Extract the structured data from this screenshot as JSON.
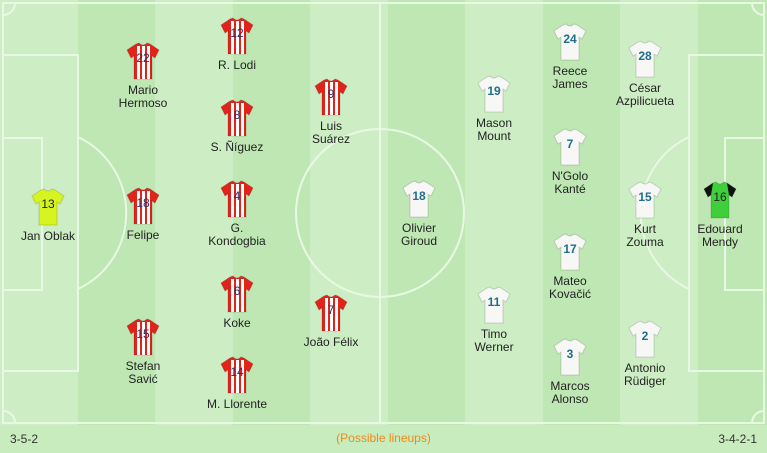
{
  "home": {
    "formation": "3-5-2",
    "players": [
      {
        "number": "13",
        "name": [
          "Jan Oblak"
        ],
        "kit": "goalkeeper-yellow"
      },
      {
        "number": "22",
        "name": [
          "Mario",
          "Hermoso"
        ],
        "kit": "red-white-stripes"
      },
      {
        "number": "18",
        "name": [
          "Felipe"
        ],
        "kit": "red-white-stripes"
      },
      {
        "number": "15",
        "name": [
          "Stefan",
          "Savić"
        ],
        "kit": "red-white-stripes"
      },
      {
        "number": "12",
        "name": [
          "R. Lodi"
        ],
        "kit": "red-white-stripes"
      },
      {
        "number": "8",
        "name": [
          "S. Ñíguez"
        ],
        "kit": "red-white-stripes"
      },
      {
        "number": "4",
        "name": [
          "G.",
          "Kondogbia"
        ],
        "kit": "red-white-stripes"
      },
      {
        "number": "6",
        "name": [
          "Koke"
        ],
        "kit": "red-white-stripes"
      },
      {
        "number": "14",
        "name": [
          "M. Llorente"
        ],
        "kit": "red-white-stripes"
      },
      {
        "number": "9",
        "name": [
          "Luis",
          "Suárez"
        ],
        "kit": "red-white-stripes"
      },
      {
        "number": "7",
        "name": [
          "João Félix"
        ],
        "kit": "red-white-stripes"
      }
    ]
  },
  "away": {
    "formation": "3-4-2-1",
    "players": [
      {
        "number": "18",
        "name": [
          "Olivier",
          "Giroud"
        ],
        "kit": "white"
      },
      {
        "number": "19",
        "name": [
          "Mason",
          "Mount"
        ],
        "kit": "white"
      },
      {
        "number": "11",
        "name": [
          "Timo",
          "Werner"
        ],
        "kit": "white"
      },
      {
        "number": "24",
        "name": [
          "Reece",
          "James"
        ],
        "kit": "white"
      },
      {
        "number": "7",
        "name": [
          "N'Golo",
          "Kanté"
        ],
        "kit": "white"
      },
      {
        "number": "17",
        "name": [
          "Mateo",
          "Kovačić"
        ],
        "kit": "white"
      },
      {
        "number": "3",
        "name": [
          "Marcos",
          "Alonso"
        ],
        "kit": "white"
      },
      {
        "number": "28",
        "name": [
          "César",
          "Azpilicueta"
        ],
        "kit": "white"
      },
      {
        "number": "15",
        "name": [
          "Kurt",
          "Zouma"
        ],
        "kit": "white"
      },
      {
        "number": "2",
        "name": [
          "Antonio",
          "Rüdiger"
        ],
        "kit": "white"
      },
      {
        "number": "16",
        "name": [
          "Edouard",
          "Mendy"
        ],
        "kit": "goalkeeper-green"
      }
    ]
  },
  "footer": {
    "note": "(Possible lineups)"
  },
  "colors": {
    "pitch_light": "#cdeec4",
    "pitch_dark": "#bfe7b3",
    "note": "#f08a1c",
    "home_number": "#2a2f6b",
    "away_number": "#1f6e8c"
  }
}
